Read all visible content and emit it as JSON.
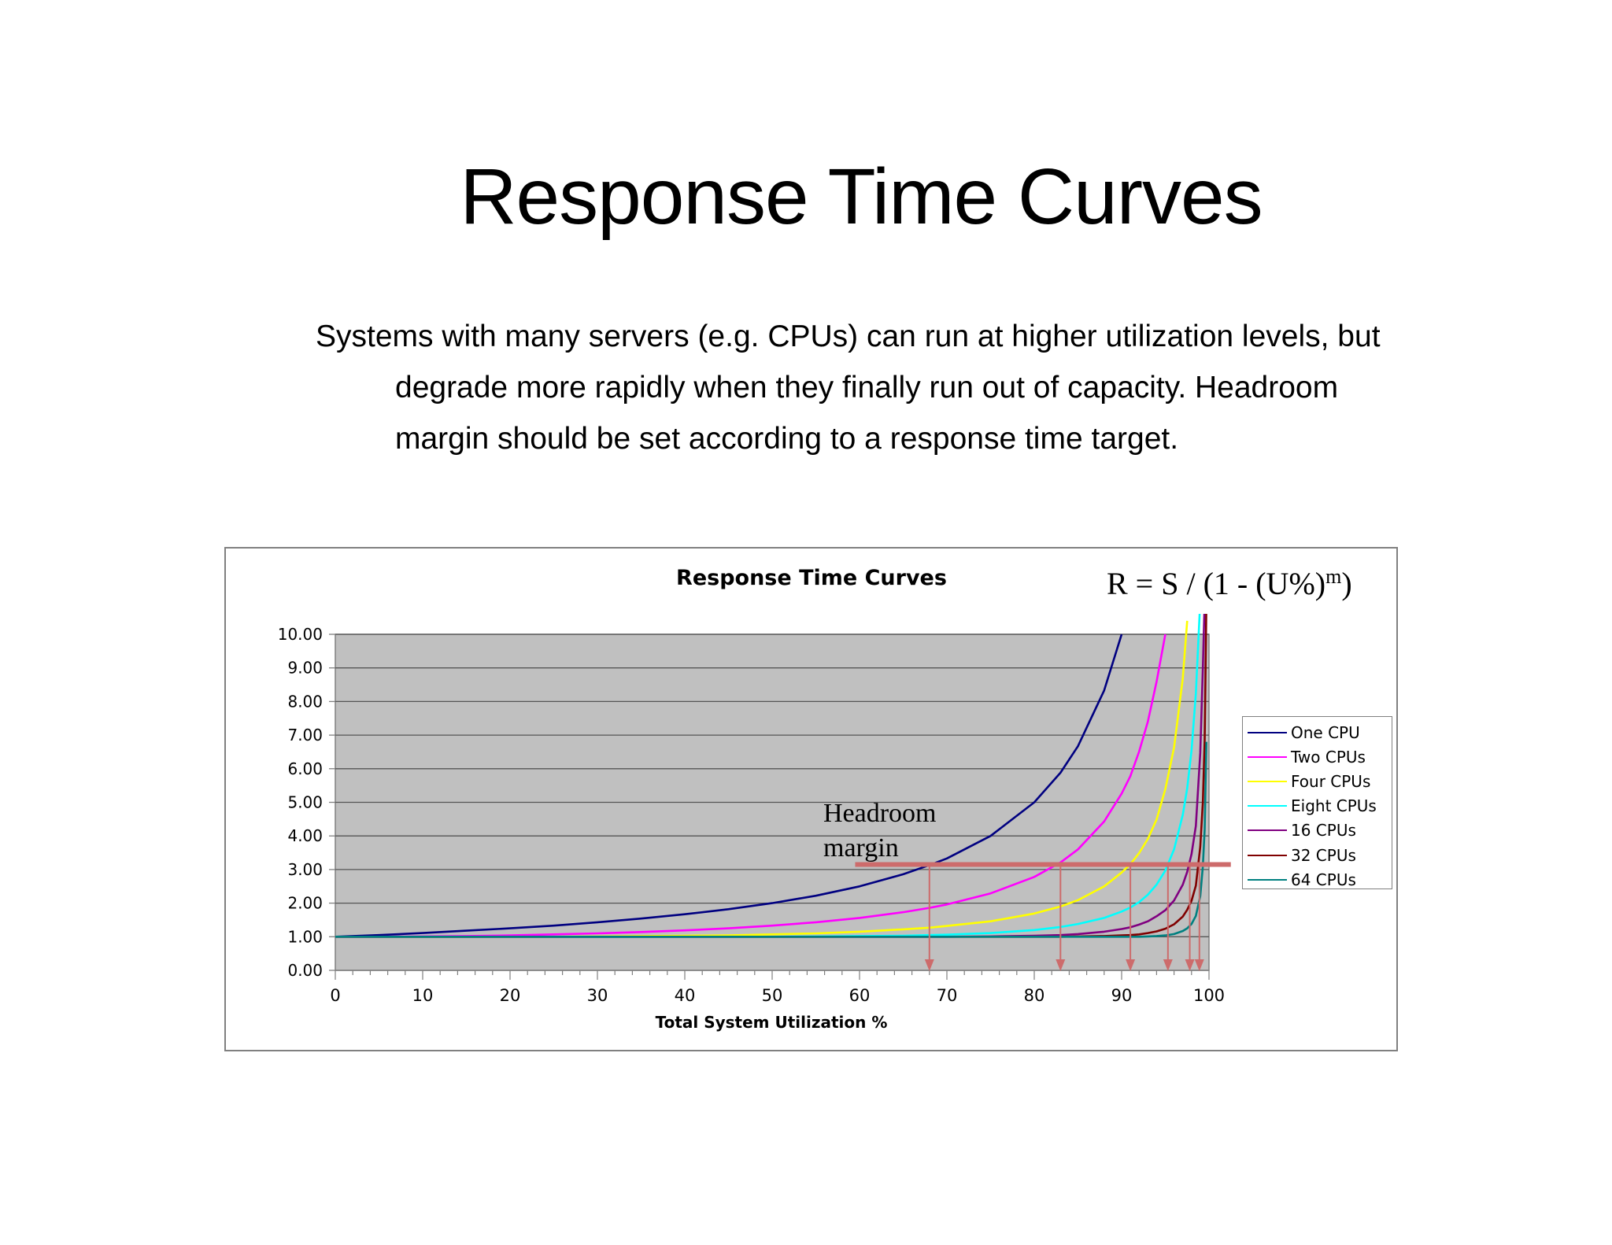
{
  "slide": {
    "title": "Response Time Curves",
    "body": [
      "Systems with many servers (e.g. CPUs) can run at higher utilization levels, but degrade more rapidly when they finally run out of capacity. Headroom margin should be set according to a response time target."
    ]
  },
  "chart_data": {
    "type": "line",
    "title": "Response Time Curves",
    "formula": "R = S / (1 - (U%)^m)",
    "formula_parts": {
      "base": "R = S / (1 - (U%)",
      "sup": "m",
      "close": ")"
    },
    "xlabel": "Total System Utilization %",
    "ylabel": "",
    "xlim": [
      0,
      100
    ],
    "ylim": [
      0,
      10
    ],
    "x_ticks": [
      "0",
      "10",
      "20",
      "30",
      "40",
      "50",
      "60",
      "70",
      "80",
      "90",
      "100"
    ],
    "y_ticks": [
      "0.00",
      "1.00",
      "2.00",
      "3.00",
      "4.00",
      "5.00",
      "6.00",
      "7.00",
      "8.00",
      "9.00",
      "10.00"
    ],
    "grid": {
      "horizontal": true,
      "vertical": false
    },
    "plot_background": "#c0c0c0",
    "legend_position": "right",
    "x": [
      0,
      5,
      10,
      15,
      20,
      25,
      30,
      35,
      40,
      45,
      50,
      55,
      60,
      65,
      68,
      70,
      75,
      80,
      83,
      85,
      88,
      90,
      91,
      92,
      93,
      94,
      95,
      96,
      97,
      97.5,
      98,
      98.5,
      99,
      99.3,
      99.5,
      99.7,
      100
    ],
    "series": [
      {
        "name": "One CPU",
        "m": 1,
        "color": "#000080",
        "values": [
          1.0,
          1.05,
          1.11,
          1.18,
          1.25,
          1.33,
          1.43,
          1.54,
          1.67,
          1.82,
          2.0,
          2.22,
          2.5,
          2.86,
          3.13,
          3.33,
          4.0,
          5.0,
          5.88,
          6.67,
          8.33,
          10.0,
          null,
          null,
          null,
          null,
          null,
          null,
          null,
          null,
          null,
          null,
          null,
          null,
          null,
          null,
          null
        ]
      },
      {
        "name": "Two CPUs",
        "m": 2,
        "color": "#ff00ff",
        "values": [
          1.0,
          1.0,
          1.01,
          1.02,
          1.04,
          1.07,
          1.1,
          1.14,
          1.19,
          1.25,
          1.33,
          1.43,
          1.56,
          1.73,
          1.86,
          1.96,
          2.29,
          2.78,
          3.21,
          3.6,
          4.43,
          5.26,
          5.78,
          6.51,
          7.4,
          8.59,
          10.0,
          null,
          null,
          null,
          null,
          null,
          null,
          null,
          null,
          null,
          null
        ]
      },
      {
        "name": "Four CPUs",
        "m": 4,
        "color": "#ffff00",
        "values": [
          1.0,
          1.0,
          1.0,
          1.0,
          1.0,
          1.0,
          1.01,
          1.02,
          1.03,
          1.04,
          1.07,
          1.1,
          1.15,
          1.22,
          1.27,
          1.32,
          1.46,
          1.69,
          1.9,
          2.09,
          2.5,
          2.91,
          3.16,
          3.49,
          3.91,
          4.49,
          5.39,
          6.63,
          8.69,
          10.4,
          null,
          null,
          null,
          null,
          null,
          null,
          null
        ]
      },
      {
        "name": "Eight CPUs",
        "m": 8,
        "color": "#00ffff",
        "values": [
          1.0,
          1.0,
          1.0,
          1.0,
          1.0,
          1.0,
          1.0,
          1.0,
          1.0,
          1.0,
          1.0,
          1.01,
          1.02,
          1.03,
          1.05,
          1.06,
          1.11,
          1.2,
          1.29,
          1.38,
          1.56,
          1.75,
          1.87,
          2.03,
          2.25,
          2.55,
          2.97,
          3.6,
          4.63,
          5.42,
          6.54,
          8.24,
          12.9,
          null,
          null,
          null,
          null
        ]
      },
      {
        "name": "16 CPUs",
        "m": 16,
        "color": "#800080",
        "values": [
          1.0,
          1.0,
          1.0,
          1.0,
          1.0,
          1.0,
          1.0,
          1.0,
          1.0,
          1.0,
          1.0,
          1.0,
          1.0,
          1.0,
          1.0,
          1.0,
          1.01,
          1.03,
          1.05,
          1.08,
          1.15,
          1.23,
          1.28,
          1.36,
          1.46,
          1.61,
          1.79,
          2.08,
          2.55,
          2.93,
          3.46,
          4.3,
          6.47,
          9.0,
          12.8,
          null,
          null
        ]
      },
      {
        "name": "32 CPUs",
        "m": 32,
        "color": "#800000",
        "values": [
          1.0,
          1.0,
          1.0,
          1.0,
          1.0,
          1.0,
          1.0,
          1.0,
          1.0,
          1.0,
          1.0,
          1.0,
          1.0,
          1.0,
          1.0,
          1.0,
          1.0,
          1.0,
          1.0,
          1.01,
          1.02,
          1.04,
          1.05,
          1.07,
          1.11,
          1.16,
          1.24,
          1.37,
          1.6,
          1.8,
          2.07,
          2.52,
          3.68,
          5.0,
          6.85,
          11.0,
          null
        ]
      },
      {
        "name": "64 CPUs",
        "m": 64,
        "color": "#008080",
        "values": [
          1.0,
          1.0,
          1.0,
          1.0,
          1.0,
          1.0,
          1.0,
          1.0,
          1.0,
          1.0,
          1.0,
          1.0,
          1.0,
          1.0,
          1.0,
          1.0,
          1.0,
          1.0,
          1.0,
          1.0,
          1.0,
          1.0,
          1.0,
          1.0,
          1.01,
          1.02,
          1.04,
          1.08,
          1.17,
          1.25,
          1.38,
          1.62,
          2.21,
          3.1,
          4.2,
          6.8,
          null
        ]
      }
    ],
    "annotations": {
      "headroom_label": [
        "Headroom",
        "margin"
      ],
      "headroom_line": {
        "y": 3.15,
        "x_start": 59.5,
        "x_end": 102.5,
        "color": "#cd6b6b"
      },
      "target_arrows_x": [
        68,
        83,
        91,
        95.3,
        97.8,
        98.9
      ]
    }
  }
}
